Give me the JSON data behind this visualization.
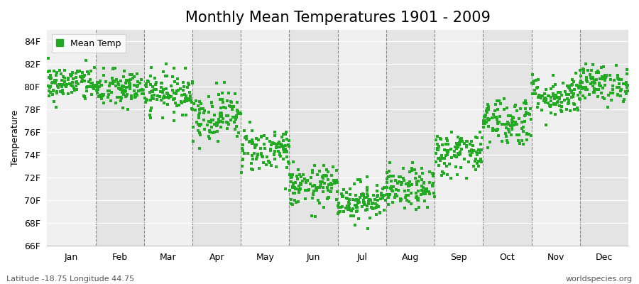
{
  "title": "Monthly Mean Temperatures 1901 - 2009",
  "ylabel": "Temperature",
  "ylim": [
    66,
    85
  ],
  "ytick_labels": [
    "66F",
    "68F",
    "70F",
    "72F",
    "74F",
    "76F",
    "78F",
    "80F",
    "82F",
    "84F"
  ],
  "ytick_values": [
    66,
    68,
    70,
    72,
    74,
    76,
    78,
    80,
    82,
    84
  ],
  "months": [
    "Jan",
    "Feb",
    "Mar",
    "Apr",
    "May",
    "Jun",
    "Jul",
    "Aug",
    "Sep",
    "Oct",
    "Nov",
    "Dec"
  ],
  "dot_color": "#22aa22",
  "bg_color": "#ffffff",
  "band_even_color": "#f0f0f0",
  "band_odd_color": "#e4e4e4",
  "grid_color": "#888888",
  "title_fontsize": 15,
  "label_fontsize": 9,
  "tick_fontsize": 9,
  "legend_label": "Mean Temp",
  "footnote_left": "Latitude -18.75 Longitude 44.75",
  "footnote_right": "worldspecies.org",
  "monthly_means": [
    80.3,
    79.8,
    79.5,
    77.5,
    74.5,
    71.2,
    70.0,
    71.0,
    74.2,
    77.0,
    79.2,
    80.3
  ],
  "monthly_std": [
    0.8,
    0.85,
    0.9,
    1.1,
    1.0,
    0.9,
    0.85,
    0.9,
    1.0,
    1.1,
    0.9,
    0.8
  ],
  "n_years": 109,
  "seed": 42
}
